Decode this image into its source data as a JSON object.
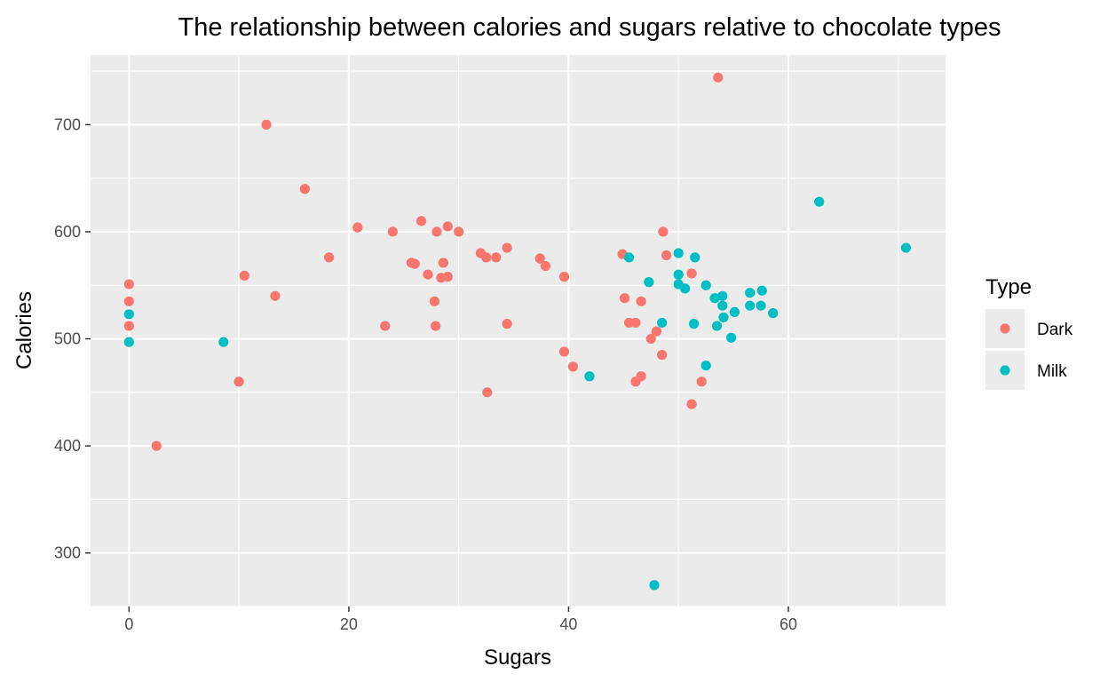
{
  "chart_data": {
    "type": "scatter",
    "title": "The relationship between calories and sugars relative to chocolate types",
    "xlabel": "Sugars",
    "ylabel": "Calories",
    "xlim": [
      -3.5,
      74.3
    ],
    "ylim": [
      250,
      765
    ],
    "x_ticks": [
      0,
      20,
      40,
      60
    ],
    "x_minor_ticks": [
      10,
      30,
      50,
      70
    ],
    "y_ticks": [
      300,
      400,
      500,
      600,
      700
    ],
    "y_minor_ticks": [
      250,
      350,
      450,
      550,
      650,
      750
    ],
    "x_tick_labels": [
      "0",
      "20",
      "40",
      "60"
    ],
    "y_tick_labels": [
      "300",
      "400",
      "500",
      "600",
      "700"
    ],
    "grid": true,
    "legend": {
      "title": "Type",
      "position": "right"
    },
    "series": [
      {
        "name": "Dark",
        "color": "#F8766D",
        "points": [
          [
            0,
            551
          ],
          [
            0,
            535
          ],
          [
            0,
            512
          ],
          [
            2.5,
            400
          ],
          [
            10,
            460
          ],
          [
            10.5,
            559
          ],
          [
            12.5,
            700
          ],
          [
            13.3,
            540
          ],
          [
            16,
            640
          ],
          [
            18.2,
            576
          ],
          [
            20.8,
            604
          ],
          [
            23.3,
            512
          ],
          [
            24,
            600
          ],
          [
            25.7,
            571
          ],
          [
            26,
            570
          ],
          [
            26.6,
            610
          ],
          [
            27.2,
            560
          ],
          [
            27.8,
            535
          ],
          [
            27.9,
            512
          ],
          [
            28,
            600
          ],
          [
            28.4,
            557
          ],
          [
            28.6,
            571
          ],
          [
            29,
            558
          ],
          [
            29,
            605
          ],
          [
            30,
            600
          ],
          [
            32,
            580
          ],
          [
            32.5,
            576
          ],
          [
            32.6,
            450
          ],
          [
            33.4,
            576
          ],
          [
            34.4,
            514
          ],
          [
            34.4,
            585
          ],
          [
            37.4,
            575
          ],
          [
            37.9,
            568
          ],
          [
            39.6,
            558
          ],
          [
            39.6,
            488
          ],
          [
            40.4,
            474
          ],
          [
            44.9,
            579
          ],
          [
            45.1,
            538
          ],
          [
            45.5,
            515
          ],
          [
            46.1,
            515
          ],
          [
            46.1,
            460
          ],
          [
            46.6,
            535
          ],
          [
            46.6,
            465
          ],
          [
            47.5,
            500
          ],
          [
            48,
            507
          ],
          [
            48.5,
            485
          ],
          [
            48.6,
            600
          ],
          [
            48.9,
            578
          ],
          [
            51.2,
            561
          ],
          [
            51.2,
            439
          ],
          [
            52.1,
            460
          ],
          [
            53.6,
            744
          ]
        ]
      },
      {
        "name": "Milk",
        "color": "#00BFC4",
        "points": [
          [
            0,
            523
          ],
          [
            0,
            497
          ],
          [
            8.6,
            497
          ],
          [
            41.9,
            465
          ],
          [
            45.5,
            576
          ],
          [
            47.3,
            553
          ],
          [
            47.8,
            270
          ],
          [
            48.5,
            515
          ],
          [
            50,
            580
          ],
          [
            50,
            560
          ],
          [
            50,
            551
          ],
          [
            50.6,
            547
          ],
          [
            51.4,
            514
          ],
          [
            51.5,
            576
          ],
          [
            52.5,
            550
          ],
          [
            52.5,
            475
          ],
          [
            53.3,
            538
          ],
          [
            53.5,
            512
          ],
          [
            54,
            540
          ],
          [
            54,
            531
          ],
          [
            54.1,
            520
          ],
          [
            54.8,
            501
          ],
          [
            55.1,
            525
          ],
          [
            56.5,
            543
          ],
          [
            56.5,
            531
          ],
          [
            57.5,
            531
          ],
          [
            57.6,
            545
          ],
          [
            58.6,
            524
          ],
          [
            62.8,
            628
          ],
          [
            70.7,
            585
          ]
        ]
      }
    ]
  }
}
